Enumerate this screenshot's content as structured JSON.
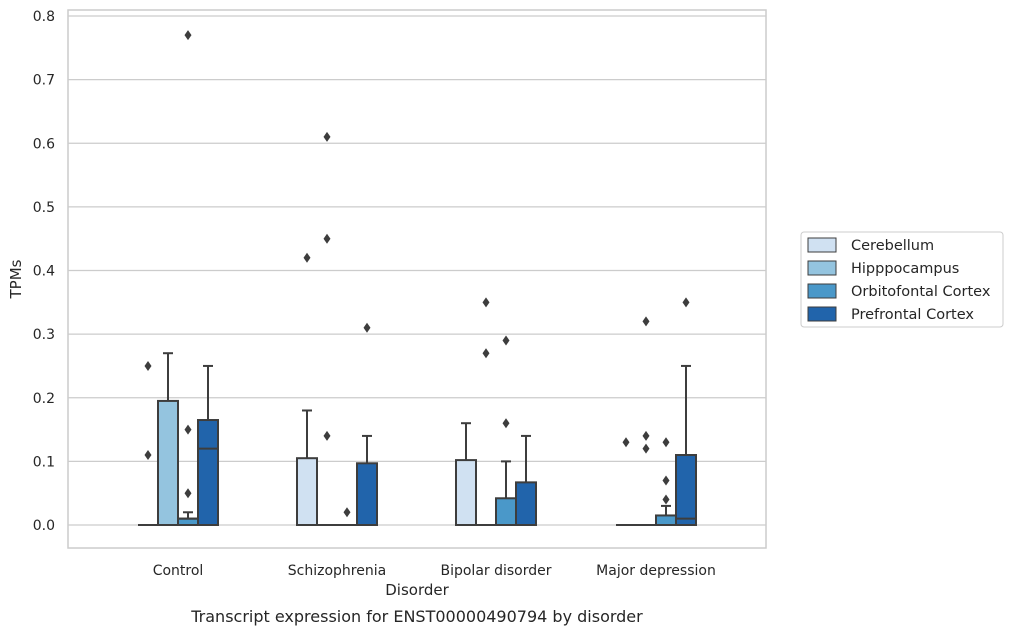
{
  "chart_data": {
    "type": "box",
    "caption": "Transcript expression for ENST00000490794 by disorder",
    "xlabel": "Disorder",
    "ylabel": "TPMs",
    "ylim": [
      -0.04,
      0.81
    ],
    "yticks": [
      0.0,
      0.1,
      0.2,
      0.3,
      0.4,
      0.5,
      0.6,
      0.7,
      0.8
    ],
    "ytick_labels": [
      "0.0",
      "0.1",
      "0.2",
      "0.3",
      "0.4",
      "0.5",
      "0.6",
      "0.7",
      "0.8"
    ],
    "grid": "horizontal",
    "legend_position": "right",
    "categories": [
      "Control",
      "Schizophrenia",
      "Bipolar disorder",
      "Major depression"
    ],
    "series": [
      {
        "name": "Cerebellum",
        "color": "#d0e1f2",
        "boxes": [
          {
            "q1": 0,
            "median": 0,
            "q3": 0,
            "whislo": 0,
            "whishi": 0,
            "fliers": [
              0.11,
              0.25
            ]
          },
          {
            "q1": 0,
            "median": 0,
            "q3": 0.105,
            "whislo": 0,
            "whishi": 0.18,
            "fliers": [
              0.42
            ]
          },
          {
            "q1": 0,
            "median": 0,
            "q3": 0.102,
            "whislo": 0,
            "whishi": 0.16,
            "fliers": []
          },
          {
            "q1": 0,
            "median": 0,
            "q3": 0,
            "whislo": 0,
            "whishi": 0,
            "fliers": [
              0.13
            ]
          }
        ]
      },
      {
        "name": "Hipppocampus",
        "color": "#94c4df",
        "boxes": [
          {
            "q1": 0,
            "median": 0,
            "q3": 0.195,
            "whislo": 0,
            "whishi": 0.27,
            "fliers": []
          },
          {
            "q1": 0,
            "median": 0,
            "q3": 0,
            "whislo": 0,
            "whishi": 0,
            "fliers": [
              0.14,
              0.45,
              0.61
            ]
          },
          {
            "q1": 0,
            "median": 0,
            "q3": 0,
            "whislo": 0,
            "whishi": 0,
            "fliers": [
              0.27,
              0.35
            ]
          },
          {
            "q1": 0,
            "median": 0,
            "q3": 0,
            "whislo": 0,
            "whishi": 0,
            "fliers": [
              0.12,
              0.14,
              0.32
            ]
          }
        ]
      },
      {
        "name": "Orbitofontal Cortex",
        "color": "#4a98c9",
        "boxes": [
          {
            "q1": 0,
            "median": 0.01,
            "q3": 0.01,
            "whislo": 0,
            "whishi": 0.02,
            "fliers": [
              0.05,
              0.15,
              0.77
            ]
          },
          {
            "q1": 0,
            "median": 0,
            "q3": 0,
            "whislo": 0,
            "whishi": 0,
            "fliers": [
              0.02
            ]
          },
          {
            "q1": 0,
            "median": 0,
            "q3": 0.042,
            "whislo": 0,
            "whishi": 0.1,
            "fliers": [
              0.16,
              0.29
            ]
          },
          {
            "q1": 0,
            "median": 0,
            "q3": 0.015,
            "whislo": 0,
            "whishi": 0.03,
            "fliers": [
              0.04,
              0.07,
              0.13
            ]
          }
        ]
      },
      {
        "name": "Prefrontal Cortex",
        "color": "#2164ab",
        "boxes": [
          {
            "q1": 0,
            "median": 0.12,
            "q3": 0.165,
            "whislo": 0,
            "whishi": 0.25,
            "fliers": []
          },
          {
            "q1": 0,
            "median": 0,
            "q3": 0.097,
            "whislo": 0,
            "whishi": 0.14,
            "fliers": [
              0.31
            ]
          },
          {
            "q1": 0,
            "median": 0,
            "q3": 0.067,
            "whislo": 0,
            "whishi": 0.14,
            "fliers": []
          },
          {
            "q1": 0,
            "median": 0.01,
            "q3": 0.11,
            "whislo": 0,
            "whishi": 0.25,
            "fliers": [
              0.35
            ]
          }
        ]
      }
    ]
  }
}
